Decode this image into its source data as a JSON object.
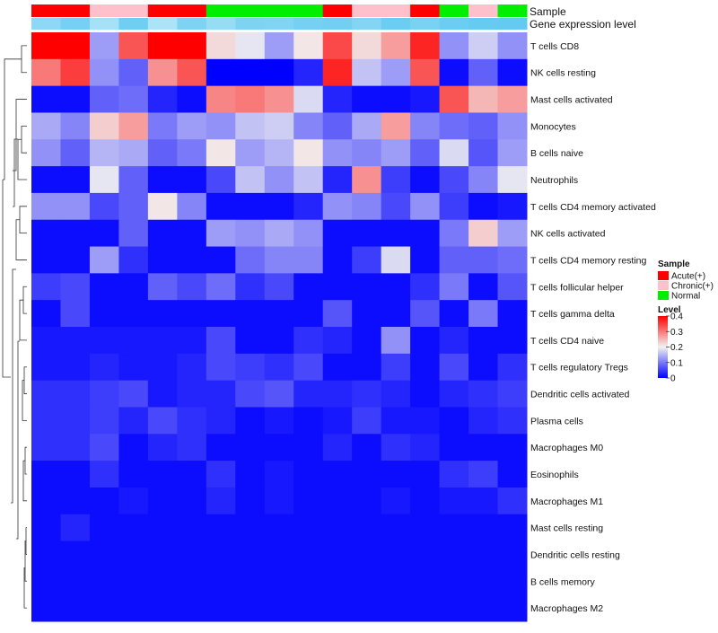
{
  "chart_data": {
    "type": "heatmap",
    "title": "",
    "annotation_tracks": [
      "Sample",
      "Gene expression level"
    ],
    "sample_groups": [
      "Acute",
      "Acute",
      "Chronic",
      "Chronic",
      "Acute",
      "Acute",
      "Normal",
      "Normal",
      "Normal",
      "Normal",
      "Acute",
      "Chronic",
      "Chronic",
      "Acute",
      "Normal",
      "Chronic",
      "Normal"
    ],
    "expression_track": [
      0.62,
      0.78,
      0.45,
      0.82,
      0.4,
      0.72,
      0.55,
      0.72,
      0.7,
      0.78,
      0.8,
      0.68,
      0.85,
      0.75,
      0.85,
      0.88,
      0.9
    ],
    "rows": [
      "T cells CD8",
      "NK cells resting",
      "Mast cells activated",
      "Monocytes",
      "B cells naive",
      "Neutrophils",
      "T cells CD4 memory activated",
      "NK cells activated",
      "T cells CD4 memory resting",
      "T cells follicular helper",
      "T cells gamma delta",
      "T cells CD4 naive",
      "T cells regulatory  Tregs",
      "Dendritic cells activated",
      "Plasma cells",
      "Macrophages M0",
      "Eosinophils",
      "Macrophages M1",
      "Mast cells resting",
      "Dendritic cells resting",
      "B cells memory",
      "Macrophages M2"
    ],
    "values": [
      [
        0.4,
        0.4,
        0.13,
        0.33,
        0.4,
        0.4,
        0.22,
        0.19,
        0.13,
        0.21,
        0.34,
        0.22,
        0.27,
        0.37,
        0.12,
        0.17,
        0.12
      ],
      [
        0.3,
        0.35,
        0.12,
        0.08,
        0.28,
        0.33,
        0.0,
        0.0,
        0.0,
        0.03,
        0.37,
        0.16,
        0.13,
        0.33,
        0.01,
        0.08,
        0.01
      ],
      [
        0.01,
        0.01,
        0.08,
        0.09,
        0.03,
        0.01,
        0.29,
        0.3,
        0.28,
        0.18,
        0.03,
        0.01,
        0.01,
        0.02,
        0.33,
        0.25,
        0.27
      ],
      [
        0.14,
        0.11,
        0.23,
        0.27,
        0.1,
        0.13,
        0.12,
        0.16,
        0.17,
        0.11,
        0.08,
        0.14,
        0.27,
        0.11,
        0.09,
        0.08,
        0.12
      ],
      [
        0.12,
        0.08,
        0.15,
        0.14,
        0.08,
        0.1,
        0.21,
        0.13,
        0.15,
        0.21,
        0.12,
        0.11,
        0.13,
        0.08,
        0.18,
        0.07,
        0.13
      ],
      [
        0.01,
        0.01,
        0.19,
        0.08,
        0.01,
        0.01,
        0.06,
        0.16,
        0.12,
        0.16,
        0.03,
        0.28,
        0.05,
        0.01,
        0.06,
        0.11,
        0.19
      ],
      [
        0.12,
        0.12,
        0.06,
        0.08,
        0.21,
        0.11,
        0.01,
        0.01,
        0.01,
        0.03,
        0.12,
        0.11,
        0.06,
        0.12,
        0.05,
        0.01,
        0.02
      ],
      [
        0.01,
        0.01,
        0.01,
        0.08,
        0.01,
        0.01,
        0.13,
        0.12,
        0.14,
        0.12,
        0.01,
        0.01,
        0.01,
        0.01,
        0.1,
        0.23,
        0.13
      ],
      [
        0.01,
        0.01,
        0.13,
        0.04,
        0.01,
        0.01,
        0.01,
        0.09,
        0.11,
        0.11,
        0.01,
        0.05,
        0.18,
        0.01,
        0.08,
        0.08,
        0.09
      ],
      [
        0.05,
        0.06,
        0.01,
        0.01,
        0.08,
        0.06,
        0.09,
        0.04,
        0.06,
        0.01,
        0.01,
        0.01,
        0.01,
        0.04,
        0.1,
        0.01,
        0.07
      ],
      [
        0.01,
        0.06,
        0.01,
        0.01,
        0.01,
        0.01,
        0.01,
        0.01,
        0.01,
        0.01,
        0.07,
        0.01,
        0.01,
        0.07,
        0.01,
        0.1,
        0.01
      ],
      [
        0.02,
        0.02,
        0.02,
        0.02,
        0.02,
        0.02,
        0.06,
        0.01,
        0.01,
        0.04,
        0.03,
        0.01,
        0.12,
        0.01,
        0.03,
        0.01,
        0.01
      ],
      [
        0.02,
        0.02,
        0.03,
        0.02,
        0.02,
        0.03,
        0.06,
        0.05,
        0.04,
        0.06,
        0.01,
        0.01,
        0.05,
        0.01,
        0.06,
        0.01,
        0.04
      ],
      [
        0.04,
        0.04,
        0.05,
        0.06,
        0.02,
        0.03,
        0.03,
        0.06,
        0.07,
        0.03,
        0.03,
        0.04,
        0.03,
        0.01,
        0.03,
        0.04,
        0.05
      ],
      [
        0.04,
        0.04,
        0.05,
        0.03,
        0.06,
        0.04,
        0.03,
        0.01,
        0.02,
        0.01,
        0.02,
        0.05,
        0.02,
        0.02,
        0.01,
        0.03,
        0.04
      ],
      [
        0.04,
        0.04,
        0.06,
        0.01,
        0.03,
        0.04,
        0.01,
        0.01,
        0.01,
        0.01,
        0.03,
        0.01,
        0.04,
        0.03,
        0.01,
        0.01,
        0.01
      ],
      [
        0.01,
        0.01,
        0.04,
        0.01,
        0.01,
        0.01,
        0.04,
        0.01,
        0.02,
        0.01,
        0.01,
        0.01,
        0.01,
        0.01,
        0.04,
        0.05,
        0.01
      ],
      [
        0.01,
        0.01,
        0.01,
        0.02,
        0.01,
        0.01,
        0.03,
        0.01,
        0.02,
        0.01,
        0.01,
        0.01,
        0.02,
        0.01,
        0.02,
        0.02,
        0.04
      ],
      [
        0.01,
        0.03,
        0.01,
        0.01,
        0.01,
        0.01,
        0.01,
        0.01,
        0.01,
        0.01,
        0.01,
        0.01,
        0.01,
        0.01,
        0.01,
        0.01,
        0.01
      ],
      [
        0.01,
        0.01,
        0.01,
        0.01,
        0.01,
        0.01,
        0.01,
        0.01,
        0.01,
        0.01,
        0.01,
        0.01,
        0.01,
        0.01,
        0.01,
        0.01,
        0.01
      ],
      [
        0.01,
        0.01,
        0.01,
        0.01,
        0.01,
        0.01,
        0.01,
        0.01,
        0.01,
        0.01,
        0.01,
        0.01,
        0.01,
        0.01,
        0.01,
        0.01,
        0.01
      ],
      [
        0.01,
        0.01,
        0.01,
        0.01,
        0.01,
        0.01,
        0.01,
        0.01,
        0.01,
        0.01,
        0.01,
        0.01,
        0.01,
        0.01,
        0.01,
        0.01,
        0.01
      ]
    ],
    "value_range": [
      0,
      0.4
    ],
    "legend_sample": {
      "title": "Sample",
      "entries": [
        {
          "label": "Acute(+)",
          "key": "Acute",
          "color": "#ff0000"
        },
        {
          "label": "Chronic(+)",
          "key": "Chronic",
          "color": "#ffc0cb"
        },
        {
          "label": "Normal",
          "key": "Normal",
          "color": "#00ee00"
        }
      ]
    },
    "legend_level": {
      "title": "Level",
      "ticks": [
        0.4,
        0.3,
        0.2,
        0.1,
        0
      ],
      "tick_labels": [
        "0.4",
        "0.3",
        "0.2",
        "0.1",
        "0"
      ]
    },
    "colors": {
      "low": "#0000ff",
      "mid": "#f2f2f2",
      "high": "#ff0000",
      "expression_light": "#e8f7fc",
      "expression_dark": "#55c5f0"
    }
  }
}
